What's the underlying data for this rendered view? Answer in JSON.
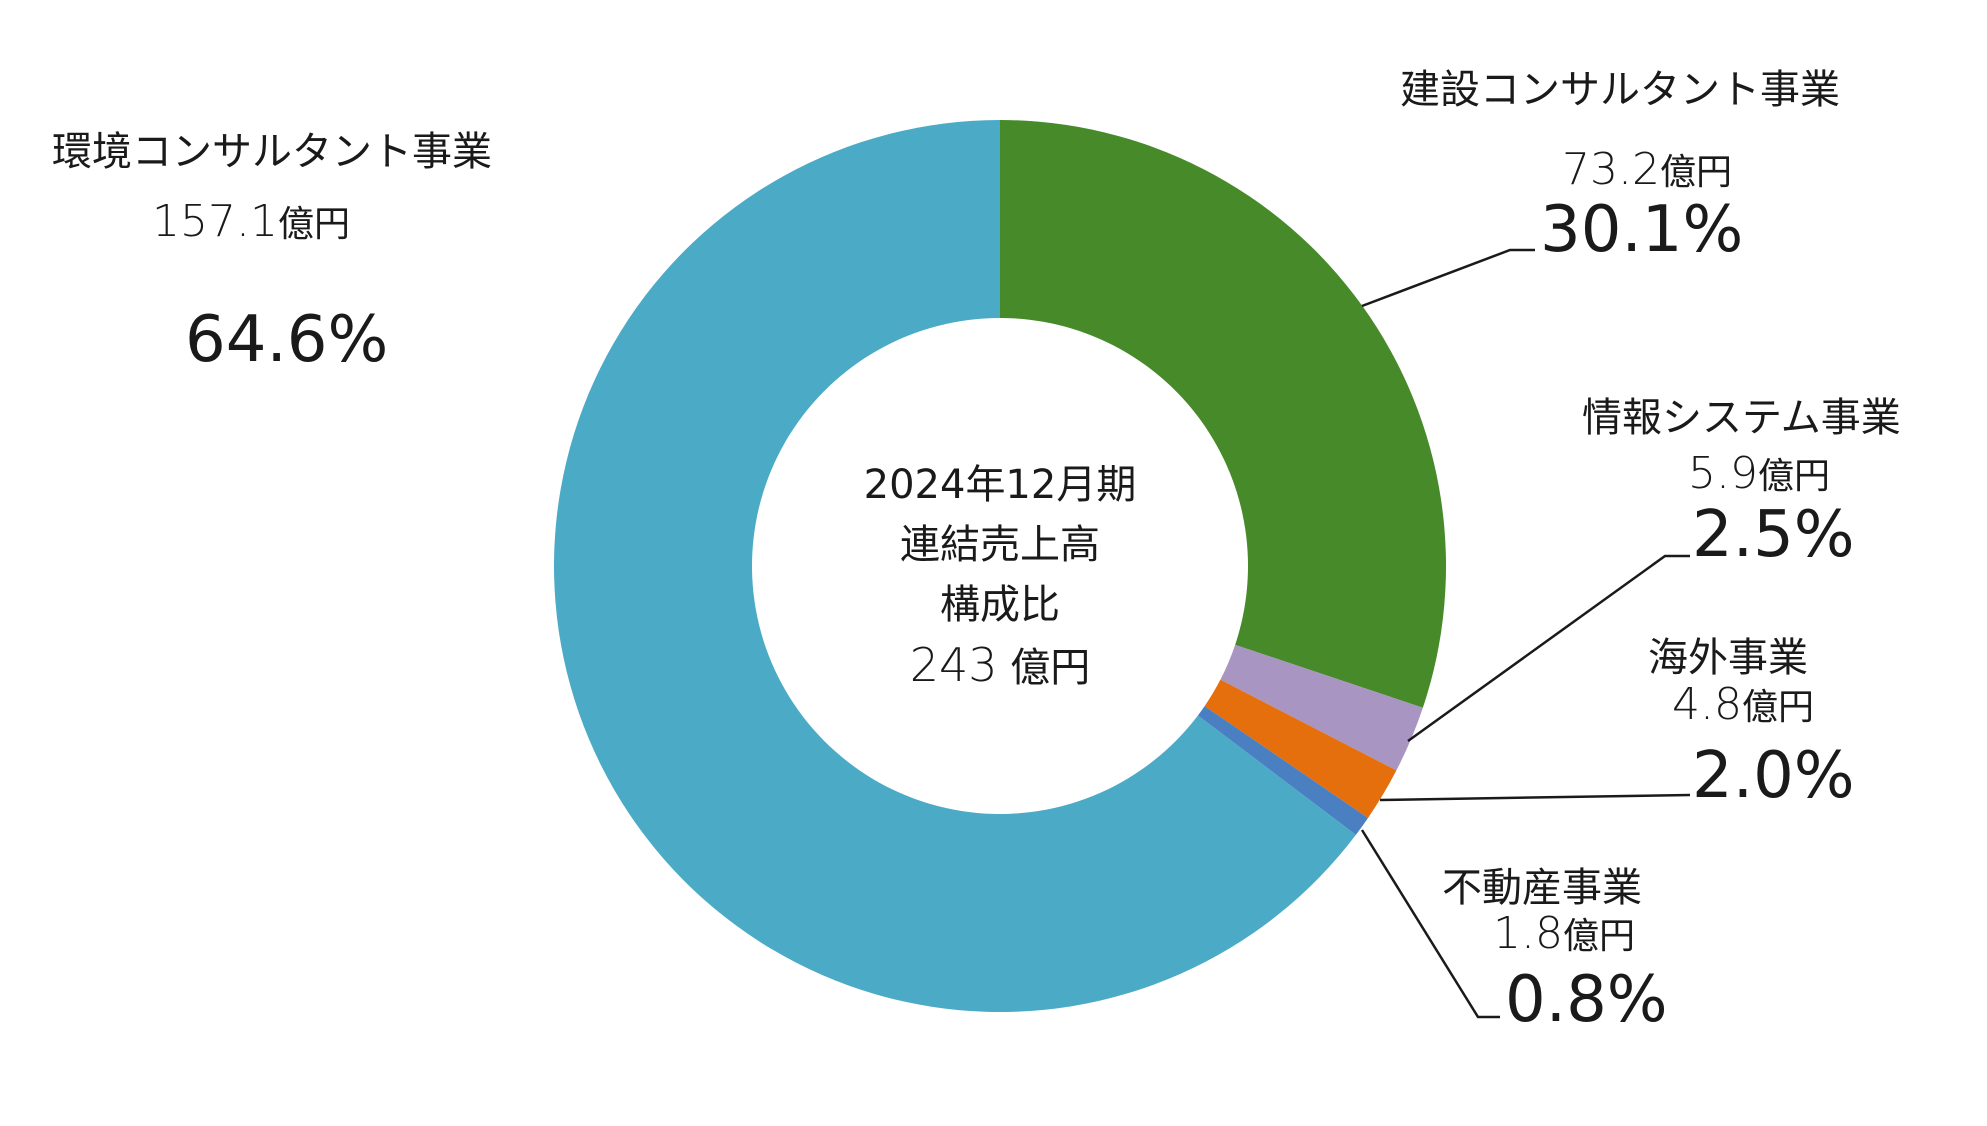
{
  "center": {
    "line1": "2024年12月期",
    "line2": "連結売上高",
    "line3": "構成比",
    "total_value": "243",
    "total_unit": "億円"
  },
  "chart_data": {
    "type": "pie",
    "donut": true,
    "unit": "億円",
    "slices": [
      {
        "label": "建設コンサルタント事業",
        "value": 73.2,
        "value_text": "73.2",
        "percent": 30.1,
        "percent_text": "30.1%",
        "color": "#468a29"
      },
      {
        "label": "情報システム事業",
        "value": 5.9,
        "value_text": "5.9",
        "percent": 2.5,
        "percent_text": "2.5%",
        "color": "#a895c2"
      },
      {
        "label": "海外事業",
        "value": 4.8,
        "value_text": "4.8",
        "percent": 2.0,
        "percent_text": "2.0%",
        "color": "#e56e0d"
      },
      {
        "label": "不動産事業",
        "value": 1.8,
        "value_text": "1.8",
        "percent": 0.8,
        "percent_text": "0.8%",
        "color": "#4a7fc1"
      },
      {
        "label": "環境コンサルタント事業",
        "value": 157.1,
        "value_text": "157.1",
        "percent": 64.6,
        "percent_text": "64.6%",
        "color": "#4baac6"
      }
    ]
  }
}
